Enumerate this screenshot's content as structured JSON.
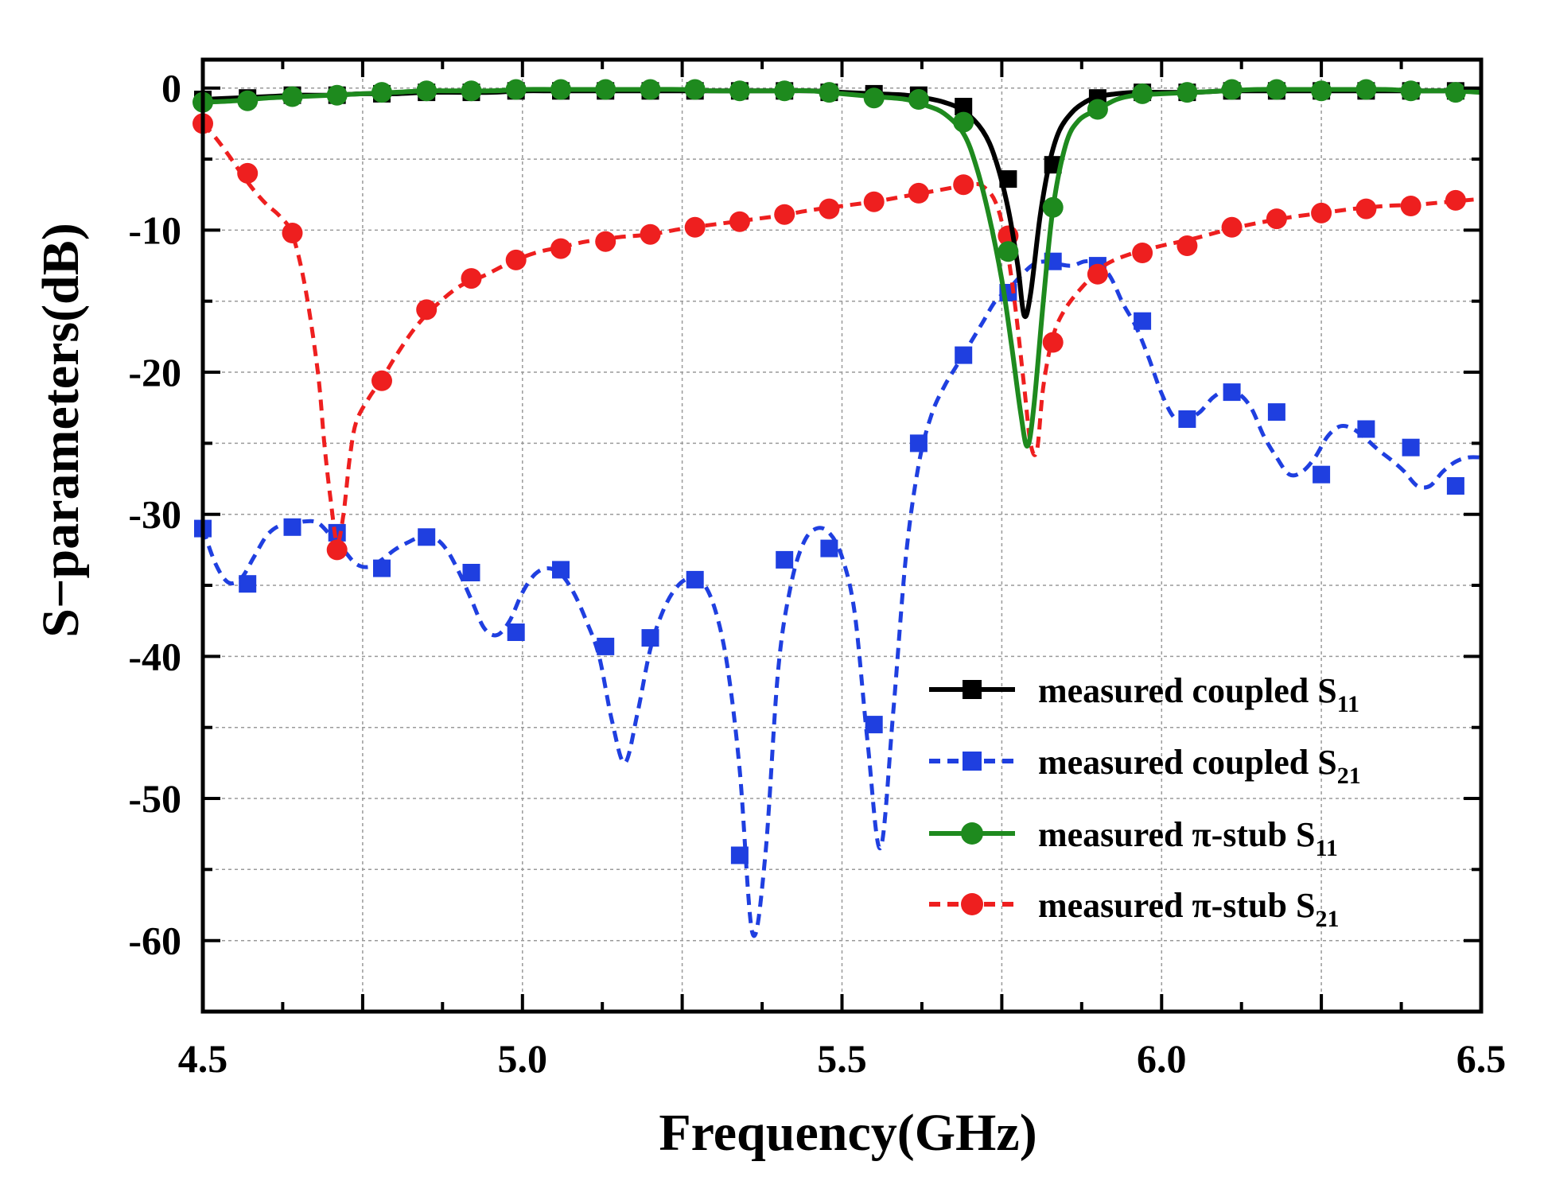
{
  "chart_data": {
    "type": "line",
    "xlabel": "Frequency(GHz)",
    "ylabel": "S−parameters(dB)",
    "xlim": [
      4.5,
      6.5
    ],
    "ylim": [
      -65,
      2
    ],
    "xticks": [
      4.5,
      5.0,
      5.5,
      6.0,
      6.5
    ],
    "xtick_labels": [
      "4.5",
      "5.0",
      "5.5",
      "6.0",
      "6.5"
    ],
    "yticks": [
      0,
      -10,
      -20,
      -30,
      -40,
      -50,
      -60
    ],
    "ytick_labels": [
      "0",
      "-10",
      "-20",
      "-30",
      "-40",
      "-50",
      "-60"
    ],
    "grid": true,
    "legend_position": "bottom-right",
    "series": [
      {
        "name": "measured coupled S11",
        "legend_main": "measured coupled S",
        "legend_sub": "11",
        "color": "#000000",
        "dash": "solid",
        "marker": "square",
        "x": [
          4.5,
          4.55,
          4.6,
          4.65,
          4.7,
          4.75,
          4.8,
          4.85,
          4.9,
          4.95,
          5.0,
          5.05,
          5.1,
          5.15,
          5.2,
          5.25,
          5.3,
          5.35,
          5.4,
          5.45,
          5.5,
          5.55,
          5.6,
          5.63,
          5.66,
          5.69,
          5.72,
          5.74,
          5.76,
          5.775,
          5.785,
          5.795,
          5.81,
          5.825,
          5.84,
          5.86,
          5.88,
          5.9,
          5.93,
          5.96,
          6.0,
          6.05,
          6.1,
          6.15,
          6.2,
          6.25,
          6.3,
          6.35,
          6.4,
          6.45,
          6.5
        ],
        "y": [
          -0.8,
          -0.7,
          -0.6,
          -0.5,
          -0.5,
          -0.4,
          -0.4,
          -0.3,
          -0.3,
          -0.3,
          -0.2,
          -0.2,
          -0.2,
          -0.2,
          -0.2,
          -0.2,
          -0.2,
          -0.2,
          -0.2,
          -0.2,
          -0.3,
          -0.4,
          -0.5,
          -0.7,
          -1.0,
          -1.6,
          -3.0,
          -5.0,
          -8.5,
          -12.5,
          -16.0,
          -14.5,
          -9.0,
          -5.2,
          -3.0,
          -1.7,
          -1.0,
          -0.6,
          -0.4,
          -0.3,
          -0.3,
          -0.3,
          -0.2,
          -0.2,
          -0.2,
          -0.2,
          -0.2,
          -0.2,
          -0.2,
          -0.2,
          -0.2
        ],
        "marker_x": [
          4.5,
          4.57,
          4.64,
          4.71,
          4.78,
          4.85,
          4.92,
          4.99,
          5.06,
          5.13,
          5.2,
          5.27,
          5.34,
          5.41,
          5.48,
          5.55,
          5.62,
          5.69,
          5.76,
          5.83,
          5.9,
          5.97,
          6.04,
          6.11,
          6.18,
          6.25,
          6.32,
          6.39,
          6.46
        ],
        "marker_y": [
          -0.8,
          -0.7,
          -0.5,
          -0.5,
          -0.4,
          -0.3,
          -0.3,
          -0.2,
          -0.2,
          -0.2,
          -0.2,
          -0.2,
          -0.2,
          -0.2,
          -0.3,
          -0.4,
          -0.5,
          -1.3,
          -6.4,
          -5.4,
          -0.7,
          -0.3,
          -0.3,
          -0.2,
          -0.2,
          -0.2,
          -0.2,
          -0.2,
          -0.2
        ]
      },
      {
        "name": "measured coupled S21",
        "legend_main": "measured  coupled S",
        "legend_sub": "21",
        "color": "#1f3fe0",
        "dash": "dashed",
        "marker": "square",
        "x": [
          4.5,
          4.52,
          4.54,
          4.56,
          4.58,
          4.6,
          4.62,
          4.64,
          4.66,
          4.68,
          4.7,
          4.72,
          4.74,
          4.76,
          4.78,
          4.8,
          4.82,
          4.84,
          4.86,
          4.88,
          4.9,
          4.92,
          4.94,
          4.96,
          4.98,
          5.0,
          5.02,
          5.04,
          5.06,
          5.08,
          5.1,
          5.12,
          5.14,
          5.16,
          5.18,
          5.2,
          5.22,
          5.24,
          5.26,
          5.28,
          5.3,
          5.32,
          5.34,
          5.36,
          5.38,
          5.4,
          5.42,
          5.44,
          5.46,
          5.48,
          5.5,
          5.52,
          5.54,
          5.56,
          5.58,
          5.6,
          5.62,
          5.64,
          5.66,
          5.68,
          5.7,
          5.72,
          5.74,
          5.76,
          5.78,
          5.8,
          5.82,
          5.84,
          5.86,
          5.88,
          5.9,
          5.92,
          5.94,
          5.96,
          5.98,
          6.0,
          6.02,
          6.04,
          6.06,
          6.08,
          6.1,
          6.12,
          6.14,
          6.16,
          6.18,
          6.2,
          6.22,
          6.24,
          6.26,
          6.28,
          6.3,
          6.32,
          6.34,
          6.36,
          6.38,
          6.4,
          6.42,
          6.44,
          6.46,
          6.48,
          6.5
        ],
        "y": [
          -31.0,
          -33.5,
          -34.8,
          -34.5,
          -33.0,
          -31.5,
          -30.8,
          -30.7,
          -30.5,
          -30.6,
          -31.5,
          -32.5,
          -33.5,
          -33.7,
          -33.2,
          -32.5,
          -32.0,
          -31.6,
          -31.6,
          -32.4,
          -34.0,
          -36.0,
          -38.0,
          -38.5,
          -37.5,
          -35.5,
          -34.2,
          -33.8,
          -34.2,
          -35.5,
          -37.5,
          -40.0,
          -44.5,
          -47.5,
          -44.0,
          -39.5,
          -36.8,
          -35.2,
          -34.5,
          -34.7,
          -36.5,
          -40.5,
          -48.0,
          -59.5,
          -54.0,
          -41.0,
          -35.0,
          -32.0,
          -31.0,
          -31.3,
          -33.0,
          -37.0,
          -46.0,
          -53.5,
          -44.0,
          -33.0,
          -26.5,
          -23.0,
          -21.0,
          -19.5,
          -18.0,
          -16.5,
          -15.0,
          -14.2,
          -13.2,
          -12.4,
          -12.2,
          -12.4,
          -12.5,
          -12.2,
          -12.3,
          -13.3,
          -15.2,
          -16.8,
          -19.0,
          -21.5,
          -23.2,
          -23.3,
          -22.8,
          -21.8,
          -21.3,
          -21.5,
          -22.5,
          -24.5,
          -26.0,
          -27.2,
          -27.0,
          -26.0,
          -24.5,
          -23.8,
          -24.0,
          -24.7,
          -25.5,
          -26.2,
          -27.0,
          -28.0,
          -28.0,
          -27.0,
          -26.3,
          -26.0,
          -26.0
        ],
        "marker_x": [
          4.5,
          4.57,
          4.64,
          4.71,
          4.78,
          4.85,
          4.92,
          4.99,
          5.06,
          5.13,
          5.2,
          5.27,
          5.34,
          5.41,
          5.48,
          5.55,
          5.62,
          5.69,
          5.76,
          5.83,
          5.9,
          5.97,
          6.04,
          6.11,
          6.18,
          6.25,
          6.32,
          6.39,
          6.46
        ],
        "marker_y": [
          -31.0,
          -34.9,
          -30.9,
          -31.3,
          -33.8,
          -31.6,
          -34.1,
          -38.3,
          -33.9,
          -39.3,
          -38.7,
          -34.6,
          -54.0,
          -33.2,
          -32.4,
          -44.8,
          -25.0,
          -18.8,
          -14.4,
          -12.2,
          -12.5,
          -16.4,
          -23.3,
          -21.4,
          -22.8,
          -27.2,
          -24.0,
          -25.3,
          -28.0
        ]
      },
      {
        "name": "measured π-stub S11",
        "legend_main": "measured  π-stub S",
        "legend_sub": "11",
        "color": "#1e8a1e",
        "dash": "solid",
        "marker": "circle",
        "x": [
          4.5,
          4.55,
          4.6,
          4.65,
          4.7,
          4.75,
          4.8,
          4.85,
          4.9,
          4.95,
          5.0,
          5.05,
          5.1,
          5.15,
          5.2,
          5.25,
          5.3,
          5.35,
          5.4,
          5.45,
          5.5,
          5.55,
          5.6,
          5.63,
          5.66,
          5.69,
          5.71,
          5.73,
          5.75,
          5.765,
          5.78,
          5.79,
          5.8,
          5.815,
          5.83,
          5.85,
          5.87,
          5.9,
          5.93,
          5.96,
          6.0,
          6.05,
          6.1,
          6.15,
          6.2,
          6.25,
          6.3,
          6.35,
          6.4,
          6.45,
          6.5
        ],
        "y": [
          -1.0,
          -0.9,
          -0.7,
          -0.6,
          -0.5,
          -0.4,
          -0.3,
          -0.2,
          -0.2,
          -0.2,
          -0.1,
          -0.1,
          -0.1,
          -0.1,
          -0.1,
          -0.1,
          -0.2,
          -0.2,
          -0.2,
          -0.2,
          -0.4,
          -0.6,
          -0.8,
          -1.2,
          -1.8,
          -3.2,
          -5.5,
          -9.0,
          -13.5,
          -18.0,
          -23.0,
          -25.2,
          -22.5,
          -15.0,
          -8.5,
          -4.0,
          -2.3,
          -1.5,
          -0.8,
          -0.5,
          -0.4,
          -0.3,
          -0.2,
          -0.1,
          -0.1,
          -0.1,
          -0.1,
          -0.1,
          -0.2,
          -0.2,
          -0.3
        ],
        "marker_x": [
          4.5,
          4.57,
          4.64,
          4.71,
          4.78,
          4.85,
          4.92,
          4.99,
          5.06,
          5.13,
          5.2,
          5.27,
          5.34,
          5.41,
          5.48,
          5.55,
          5.62,
          5.69,
          5.76,
          5.83,
          5.9,
          5.97,
          6.04,
          6.11,
          6.18,
          6.25,
          6.32,
          6.39,
          6.46
        ],
        "marker_y": [
          -1.0,
          -0.9,
          -0.6,
          -0.5,
          -0.3,
          -0.2,
          -0.2,
          -0.1,
          -0.1,
          -0.1,
          -0.1,
          -0.1,
          -0.2,
          -0.2,
          -0.3,
          -0.7,
          -0.8,
          -2.4,
          -11.5,
          -8.4,
          -1.5,
          -0.4,
          -0.3,
          -0.1,
          -0.1,
          -0.2,
          -0.1,
          -0.2,
          -0.3
        ]
      },
      {
        "name": "measured π-stub S21",
        "legend_main": "measured  π-stub S",
        "legend_sub": "21",
        "color": "#ee1f1f",
        "dash": "dashed",
        "marker": "circle",
        "x": [
          4.5,
          4.52,
          4.54,
          4.56,
          4.58,
          4.6,
          4.62,
          4.64,
          4.66,
          4.68,
          4.69,
          4.7,
          4.71,
          4.72,
          4.73,
          4.74,
          4.76,
          4.78,
          4.8,
          4.83,
          4.86,
          4.9,
          4.94,
          4.98,
          5.02,
          5.06,
          5.1,
          5.15,
          5.2,
          5.25,
          5.3,
          5.35,
          5.4,
          5.45,
          5.5,
          5.55,
          5.6,
          5.65,
          5.7,
          5.72,
          5.74,
          5.755,
          5.77,
          5.785,
          5.795,
          5.805,
          5.815,
          5.83,
          5.85,
          5.88,
          5.91,
          5.95,
          6.0,
          6.05,
          6.1,
          6.15,
          6.2,
          6.25,
          6.3,
          6.35,
          6.4,
          6.45,
          6.5
        ],
        "y": [
          -2.5,
          -3.5,
          -4.7,
          -6.0,
          -7.2,
          -8.2,
          -9.0,
          -10.3,
          -14.0,
          -20.0,
          -25.0,
          -29.0,
          -32.0,
          -30.0,
          -26.0,
          -23.5,
          -21.8,
          -20.5,
          -19.0,
          -17.0,
          -15.5,
          -14.0,
          -13.2,
          -12.3,
          -11.6,
          -11.2,
          -10.8,
          -10.5,
          -10.3,
          -9.9,
          -9.6,
          -9.3,
          -9.0,
          -8.6,
          -8.3,
          -8.0,
          -7.6,
          -7.2,
          -6.8,
          -6.9,
          -8.0,
          -10.5,
          -15.0,
          -21.0,
          -25.0,
          -25.5,
          -21.0,
          -17.5,
          -15.5,
          -13.8,
          -12.5,
          -11.7,
          -11.1,
          -10.6,
          -10.0,
          -9.5,
          -9.1,
          -8.8,
          -8.5,
          -8.3,
          -8.2,
          -8.0,
          -7.8
        ],
        "marker_x": [
          4.5,
          4.57,
          4.64,
          4.71,
          4.78,
          4.85,
          4.92,
          4.99,
          5.06,
          5.13,
          5.2,
          5.27,
          5.34,
          5.41,
          5.48,
          5.55,
          5.62,
          5.69,
          5.76,
          5.83,
          5.9,
          5.97,
          6.04,
          6.11,
          6.18,
          6.25,
          6.32,
          6.39,
          6.46
        ],
        "marker_y": [
          -2.5,
          -6.0,
          -10.2,
          -32.5,
          -20.6,
          -15.6,
          -13.4,
          -12.1,
          -11.3,
          -10.8,
          -10.3,
          -9.8,
          -9.4,
          -8.9,
          -8.5,
          -8.0,
          -7.4,
          -6.8,
          -10.4,
          -17.9,
          -13.1,
          -11.6,
          -11.1,
          -9.8,
          -9.2,
          -8.8,
          -8.5,
          -8.3,
          -7.9
        ]
      }
    ]
  }
}
